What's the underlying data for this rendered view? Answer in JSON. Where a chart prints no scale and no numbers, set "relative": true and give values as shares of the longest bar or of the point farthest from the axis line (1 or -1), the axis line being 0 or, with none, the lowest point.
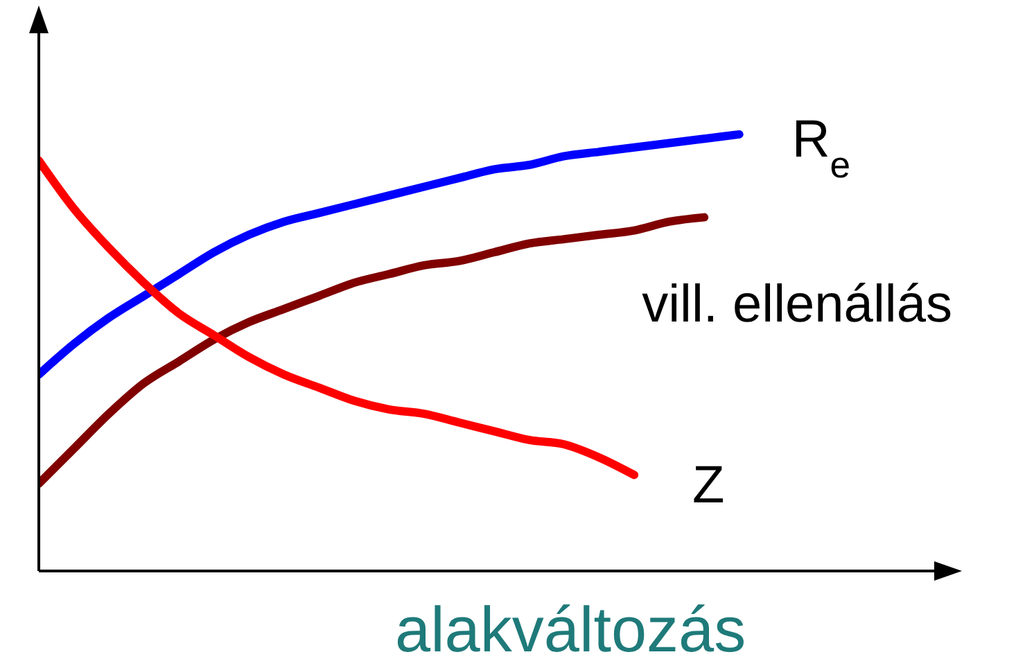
{
  "chart_data": {
    "type": "line",
    "relative": true,
    "xlabel": "alakváltozás",
    "categories": [
      null,
      null,
      null,
      null,
      null,
      null,
      null,
      null,
      null,
      null,
      null,
      null,
      null,
      null,
      null,
      null,
      null,
      null,
      null,
      null,
      null
    ],
    "series": [
      {
        "name": "R$_{e}$",
        "color": "#0000ff",
        "values": [
          0.45,
          0.52,
          0.58,
          0.63,
          0.68,
          0.73,
          0.77,
          0.8,
          0.82,
          0.84,
          0.86,
          0.88,
          0.9,
          0.92,
          0.93,
          0.95,
          0.96,
          0.97,
          0.98,
          0.99,
          1
        ]
      },
      {
        "name": "vill. ellenállás",
        "color": "#800000",
        "values": [
          0.2,
          0.28,
          0.36,
          0.43,
          0.48,
          0.53,
          0.57,
          0.6,
          0.63,
          0.66,
          0.68,
          0.7,
          0.71,
          0.73,
          0.75,
          0.76,
          0.77,
          0.78,
          0.8,
          0.81,
          null
        ]
      },
      {
        "name": "Z",
        "color": "#ff0000",
        "values": [
          0.94,
          0.83,
          0.74,
          0.66,
          0.59,
          0.54,
          0.49,
          0.45,
          0.42,
          0.39,
          0.37,
          0.36,
          0.34,
          0.32,
          0.3,
          0.29,
          0.26,
          0.22,
          null,
          null,
          null
        ]
      }
    ],
    "marker": "none",
    "line_style": "solid"
  }
}
